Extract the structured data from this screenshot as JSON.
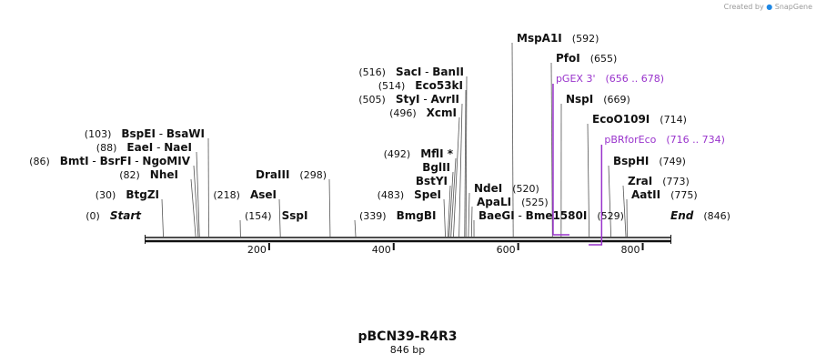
{
  "brand": {
    "created_by": "Created by",
    "name": "SnapGene"
  },
  "plasmid": {
    "name": "pBCN39-R4R3",
    "length_label": "846 bp",
    "length": 846
  },
  "colors": {
    "primer": "#9933cc",
    "line": "#111111",
    "leader": "#555555",
    "credit": "#9a9a9a"
  },
  "start": {
    "pos_label": "(0)",
    "label": "Start",
    "pos": 0
  },
  "end": {
    "label": "End",
    "pos_label": "(846)",
    "pos": 846
  },
  "ruler": {
    "ticks": [
      {
        "value": 200,
        "label": "200"
      },
      {
        "value": 400,
        "label": "400"
      },
      {
        "value": 600,
        "label": "600"
      },
      {
        "value": 800,
        "label": "800"
      }
    ]
  },
  "enzymes": [
    {
      "name": "BtgZI",
      "pos": 30,
      "pos_label": "(30)"
    },
    {
      "name": "NheI",
      "pos": 82,
      "pos_label": "(82)"
    },
    {
      "name": "BmtI",
      "pos": 86,
      "pos_label": "(86)",
      "also": [
        "BsrFI",
        "NgoMIV"
      ]
    },
    {
      "name": "EaeI",
      "pos": 88,
      "pos_label": "(88)",
      "also": [
        "NaeI"
      ]
    },
    {
      "name": "BspEI",
      "pos": 103,
      "pos_label": "(103)",
      "also": [
        "BsaWI"
      ]
    },
    {
      "name": "SspI",
      "pos": 154,
      "pos_label": "(154)"
    },
    {
      "name": "AseI",
      "pos": 218,
      "pos_label": "(218)"
    },
    {
      "name": "DraIII",
      "pos": 298,
      "pos_label": "(298)"
    },
    {
      "name": "BmgBI",
      "pos": 339,
      "pos_label": "(339)"
    },
    {
      "name": "SpeI",
      "pos": 483,
      "pos_label": "(483)"
    },
    {
      "name": "BstYI",
      "pos": 487,
      "pos_label": ""
    },
    {
      "name": "BglII",
      "pos": 489,
      "pos_label": ""
    },
    {
      "name": "MflI",
      "pos": 492,
      "pos_label": "(492)",
      "mark": "*"
    },
    {
      "name": "XcmI",
      "pos": 496,
      "pos_label": "(496)"
    },
    {
      "name": "StyI",
      "pos": 505,
      "pos_label": "(505)",
      "also": [
        "AvrII"
      ]
    },
    {
      "name": "Eco53kI",
      "pos": 514,
      "pos_label": "(514)"
    },
    {
      "name": "SacI",
      "pos": 516,
      "pos_label": "(516)",
      "also": [
        "BanII"
      ]
    },
    {
      "name": "NdeI",
      "pos": 520,
      "pos_label": "(520)"
    },
    {
      "name": "ApaLI",
      "pos": 525,
      "pos_label": "(525)"
    },
    {
      "name": "BaeGI",
      "pos": 529,
      "pos_label": "(529)",
      "also": [
        "Bme1580I"
      ]
    },
    {
      "name": "MspA1I",
      "pos": 592,
      "pos_label": "(592)"
    },
    {
      "name": "PfoI",
      "pos": 655,
      "pos_label": "(655)"
    },
    {
      "name": "NspI",
      "pos": 669,
      "pos_label": "(669)"
    },
    {
      "name": "EcoO109I",
      "pos": 714,
      "pos_label": "(714)"
    },
    {
      "name": "BspHI",
      "pos": 749,
      "pos_label": "(749)"
    },
    {
      "name": "ZraI",
      "pos": 773,
      "pos_label": "(773)"
    },
    {
      "name": "AatII",
      "pos": 775,
      "pos_label": "(775)"
    }
  ],
  "primers": [
    {
      "name": "pGEX 3'",
      "range_label": "(656 .. 678)",
      "start": 656,
      "end": 678,
      "strand": "top"
    },
    {
      "name": "pBRforEco",
      "range_label": "(716 .. 734)",
      "start": 716,
      "end": 734,
      "strand": "bottom"
    }
  ]
}
